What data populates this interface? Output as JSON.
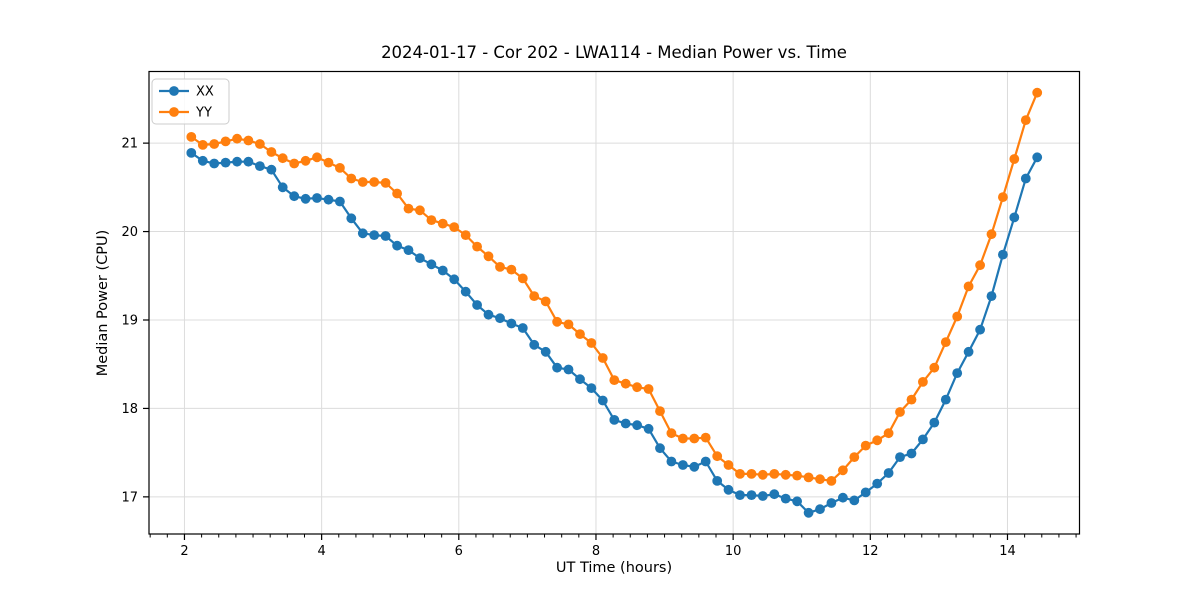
{
  "chart_data": {
    "type": "line",
    "title": "2024-01-17 - Cor 202 - LWA114 - Median Power vs. Time",
    "xlabel": "UT Time (hours)",
    "ylabel": "Median Power (CPU)",
    "xlim": [
      1.483,
      15.05
    ],
    "ylim": [
      16.58,
      21.81
    ],
    "x_ticks": [
      2,
      4,
      6,
      8,
      10,
      12,
      14
    ],
    "y_ticks": [
      17,
      18,
      19,
      20,
      21
    ],
    "x_minor_tick_step": 0.25,
    "grid": true,
    "grid_color": "#dcdcdc",
    "axis_color": "#000000",
    "legend_position": "upper-left",
    "x": [
      2.1,
      2.267,
      2.433,
      2.6,
      2.767,
      2.933,
      3.1,
      3.267,
      3.433,
      3.6,
      3.767,
      3.933,
      4.1,
      4.267,
      4.433,
      4.6,
      4.767,
      4.933,
      5.1,
      5.267,
      5.433,
      5.6,
      5.767,
      5.933,
      6.1,
      6.267,
      6.433,
      6.6,
      6.767,
      6.933,
      7.1,
      7.267,
      7.433,
      7.6,
      7.767,
      7.933,
      8.1,
      8.267,
      8.433,
      8.6,
      8.767,
      8.933,
      9.1,
      9.267,
      9.433,
      9.6,
      9.767,
      9.933,
      10.1,
      10.267,
      10.433,
      10.6,
      10.767,
      10.933,
      11.1,
      11.267,
      11.433,
      11.6,
      11.767,
      11.933,
      12.1,
      12.267,
      12.433,
      12.6,
      12.767,
      12.933,
      13.1,
      13.267,
      13.433,
      13.6,
      13.767,
      13.933,
      14.1,
      14.267,
      14.433
    ],
    "series": [
      {
        "name": "XX",
        "color": "#1f77b4",
        "values": [
          20.89,
          20.8,
          20.77,
          20.78,
          20.79,
          20.79,
          20.74,
          20.7,
          20.5,
          20.4,
          20.37,
          20.38,
          20.36,
          20.34,
          20.15,
          19.98,
          19.96,
          19.95,
          19.84,
          19.79,
          19.7,
          19.63,
          19.56,
          19.46,
          19.32,
          19.17,
          19.06,
          19.02,
          18.96,
          18.91,
          18.72,
          18.64,
          18.46,
          18.44,
          18.33,
          18.23,
          18.09,
          17.87,
          17.83,
          17.81,
          17.77,
          17.55,
          17.4,
          17.36,
          17.34,
          17.4,
          17.18,
          17.08,
          17.02,
          17.02,
          17.01,
          17.03,
          16.98,
          16.95,
          16.82,
          16.86,
          16.93,
          16.99,
          16.96,
          17.05,
          17.15,
          17.27,
          17.45,
          17.49,
          17.65,
          17.84,
          18.1,
          18.4,
          18.64,
          18.89,
          19.27,
          19.74,
          20.16,
          20.6,
          20.84
        ]
      },
      {
        "name": "YY",
        "color": "#ff7f0e",
        "values": [
          21.07,
          20.98,
          20.99,
          21.02,
          21.05,
          21.03,
          20.99,
          20.9,
          20.83,
          20.77,
          20.8,
          20.84,
          20.78,
          20.72,
          20.6,
          20.56,
          20.56,
          20.55,
          20.43,
          20.26,
          20.24,
          20.13,
          20.09,
          20.05,
          19.96,
          19.83,
          19.72,
          19.6,
          19.57,
          19.47,
          19.27,
          19.21,
          18.98,
          18.95,
          18.84,
          18.74,
          18.57,
          18.32,
          18.28,
          18.24,
          18.22,
          17.97,
          17.72,
          17.66,
          17.66,
          17.67,
          17.46,
          17.36,
          17.26,
          17.26,
          17.25,
          17.26,
          17.25,
          17.24,
          17.22,
          17.2,
          17.18,
          17.3,
          17.45,
          17.58,
          17.64,
          17.72,
          17.96,
          18.1,
          18.3,
          18.46,
          18.75,
          19.04,
          19.38,
          19.62,
          19.97,
          20.39,
          20.82,
          21.26,
          21.57
        ]
      }
    ]
  }
}
